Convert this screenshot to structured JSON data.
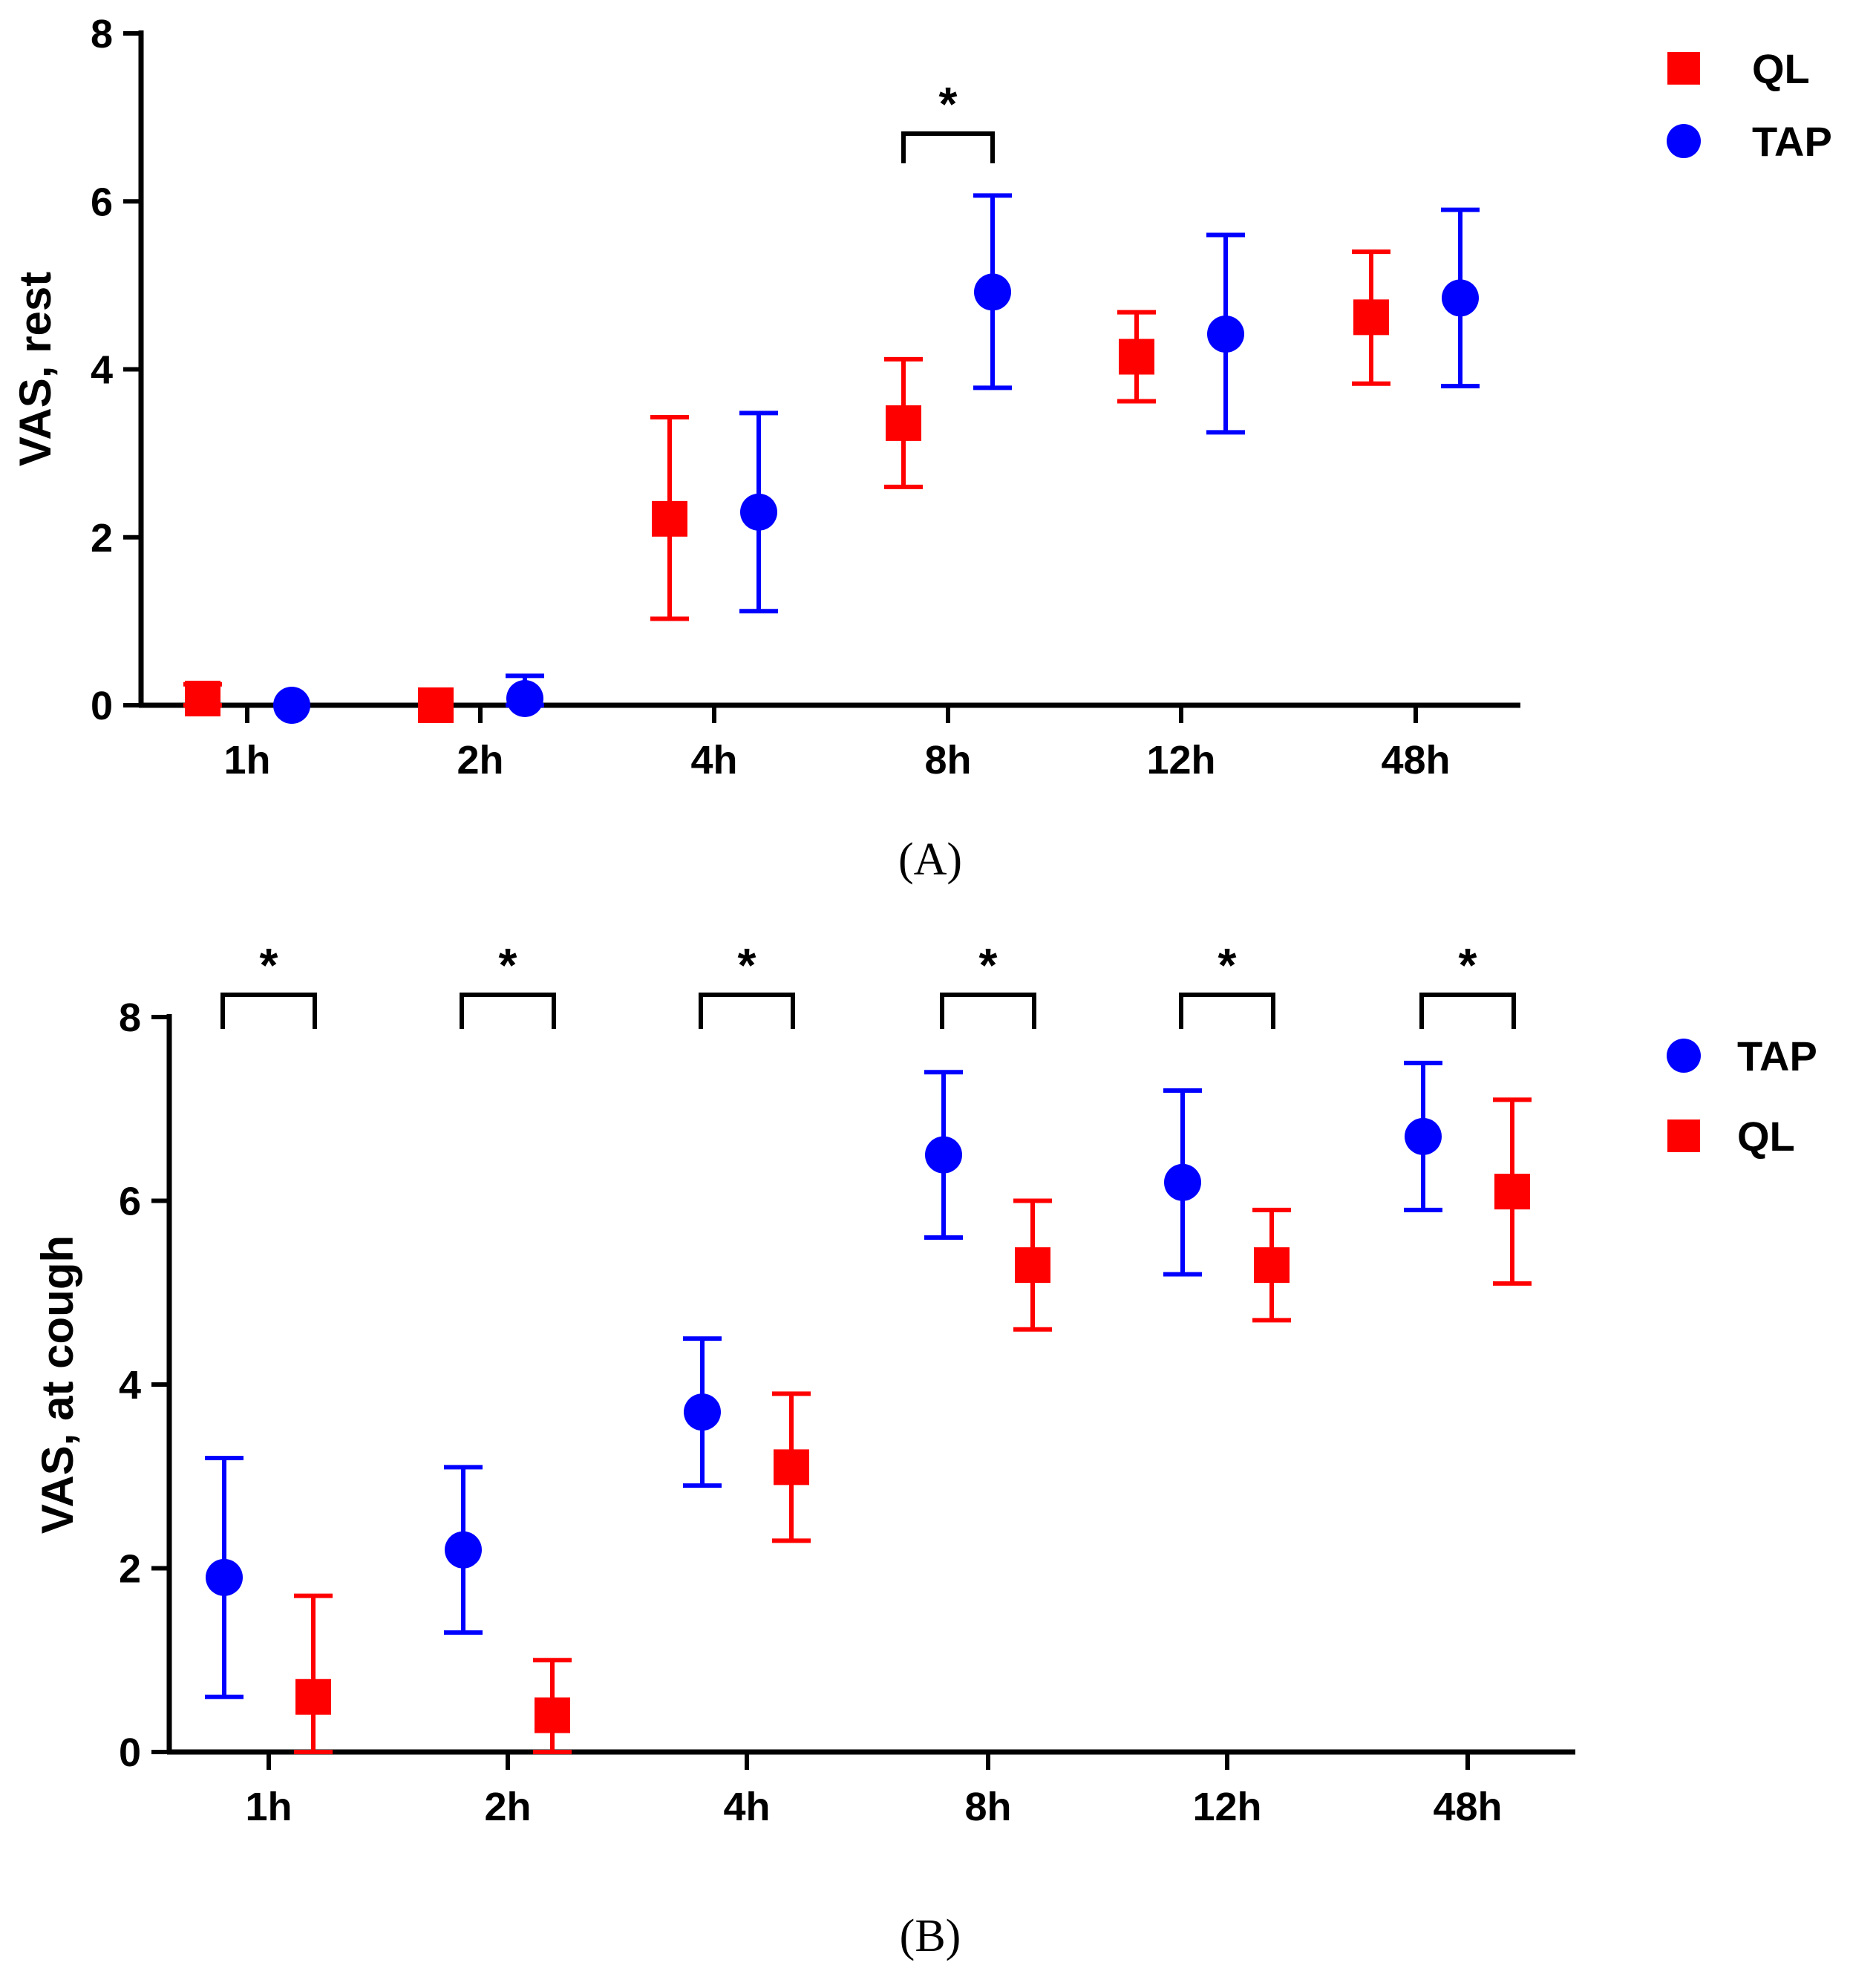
{
  "colors": {
    "QL": "#ff0000",
    "TAP": "#0000ff",
    "axis": "#000000"
  },
  "chart_data": [
    {
      "type": "scatter",
      "panel_label": "(A)",
      "categories": [
        "1h",
        "2h",
        "4h",
        "8h",
        "12h",
        "48h"
      ],
      "ylabel": "VAS, rest",
      "xlabel": "",
      "ylim": [
        0,
        8
      ],
      "yticks": [
        "0",
        "2",
        "4",
        "6",
        "8"
      ],
      "legend": {
        "placement": "top-right",
        "entries": [
          "QL",
          "TAP"
        ]
      },
      "series": [
        {
          "name": "QL",
          "marker": "square",
          "order": 0,
          "mean": [
            0.08,
            0.0,
            2.22,
            3.36,
            4.15,
            4.62
          ],
          "lower": [
            0.0,
            0.0,
            1.03,
            2.6,
            3.62,
            3.83
          ],
          "upper": [
            0.25,
            0.0,
            3.43,
            4.12,
            4.68,
            5.4
          ]
        },
        {
          "name": "TAP",
          "marker": "circle",
          "order": 1,
          "mean": [
            0.0,
            0.08,
            2.3,
            4.92,
            4.42,
            4.85
          ],
          "lower": [
            0.0,
            0.0,
            1.12,
            3.78,
            3.25,
            3.8
          ],
          "upper": [
            0.0,
            0.35,
            3.48,
            6.07,
            5.6,
            5.9
          ]
        }
      ],
      "significance": [
        {
          "category": "8h",
          "label": "*"
        }
      ]
    },
    {
      "type": "scatter",
      "panel_label": "(B)",
      "categories": [
        "1h",
        "2h",
        "4h",
        "8h",
        "12h",
        "48h"
      ],
      "ylabel": "VAS, at cough",
      "xlabel": "",
      "ylim": [
        0,
        8
      ],
      "yticks": [
        "0",
        "2",
        "4",
        "6",
        "8"
      ],
      "legend": {
        "placement": "right",
        "entries": [
          "TAP",
          "QL"
        ]
      },
      "series": [
        {
          "name": "TAP",
          "marker": "circle",
          "order": 0,
          "mean": [
            1.9,
            2.2,
            3.7,
            6.5,
            6.2,
            6.7
          ],
          "lower": [
            0.6,
            1.3,
            2.9,
            5.6,
            5.2,
            5.9
          ],
          "upper": [
            3.2,
            3.1,
            4.5,
            7.4,
            7.2,
            7.5
          ]
        },
        {
          "name": "QL",
          "marker": "square",
          "order": 1,
          "mean": [
            0.6,
            0.4,
            3.1,
            5.3,
            5.3,
            6.1
          ],
          "lower": [
            0.0,
            0.0,
            2.3,
            4.6,
            4.7,
            5.1
          ],
          "upper": [
            1.7,
            1.0,
            3.9,
            6.0,
            5.9,
            7.1
          ]
        }
      ],
      "significance": [
        {
          "category": "1h",
          "label": "*"
        },
        {
          "category": "2h",
          "label": "*"
        },
        {
          "category": "4h",
          "label": "*"
        },
        {
          "category": "8h",
          "label": "*"
        },
        {
          "category": "12h",
          "label": "*"
        },
        {
          "category": "48h",
          "label": "*"
        }
      ]
    }
  ]
}
